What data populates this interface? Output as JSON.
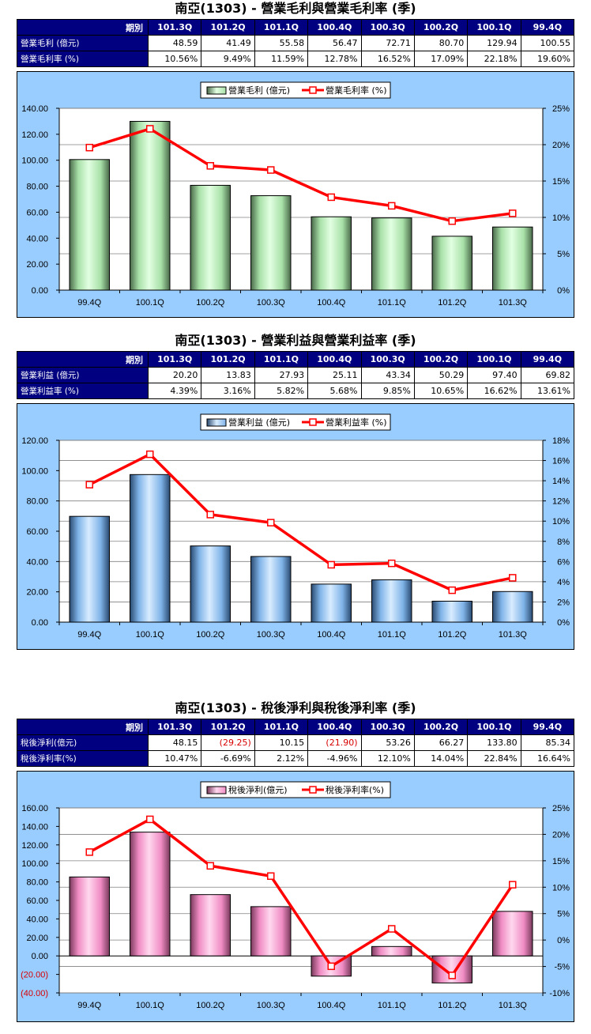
{
  "charts": [
    {
      "title": "南亞(1303) - 營業毛利與營業毛利率 (季)",
      "header_label": "期別",
      "periods": [
        "101.3Q",
        "101.2Q",
        "101.1Q",
        "100.4Q",
        "100.3Q",
        "100.2Q",
        "100.1Q",
        "99.4Q"
      ],
      "rows": [
        {
          "label": "營業毛利 (億元)",
          "values": [
            "48.59",
            "41.49",
            "55.58",
            "56.47",
            "72.71",
            "80.70",
            "129.94",
            "100.55"
          ]
        },
        {
          "label": "營業毛利率 (%)",
          "values": [
            "10.56%",
            "9.49%",
            "11.59%",
            "12.78%",
            "16.52%",
            "17.09%",
            "22.18%",
            "19.60%"
          ]
        }
      ],
      "legend_bar": "營業毛利 (億元)",
      "legend_line": "營業毛利率 (%)",
      "colors": {
        "bar_light": "#e2ffe2",
        "bar_mid": "#a8e0a8",
        "bar_dark": "#4a6a4a",
        "line": "#ff0000",
        "bg": "#99ccff"
      }
    },
    {
      "title": "南亞(1303) - 營業利益與營業利益率 (季)",
      "header_label": "期別",
      "periods": [
        "101.3Q",
        "101.2Q",
        "101.1Q",
        "100.4Q",
        "100.3Q",
        "100.2Q",
        "100.1Q",
        "99.4Q"
      ],
      "rows": [
        {
          "label": "營業利益 (億元)",
          "values": [
            "20.20",
            "13.83",
            "27.93",
            "25.11",
            "43.34",
            "50.29",
            "97.40",
            "69.82"
          ]
        },
        {
          "label": "營業利益率 (%)",
          "values": [
            "4.39%",
            "3.16%",
            "5.82%",
            "5.68%",
            "9.85%",
            "10.65%",
            "16.62%",
            "13.61%"
          ]
        }
      ],
      "legend_bar": "營業利益 (億元)",
      "legend_line": "營業利益率 (%)",
      "colors": {
        "bar_light": "#d8ecff",
        "bar_mid": "#7fb3e8",
        "bar_dark": "#2a4a70",
        "line": "#ff0000",
        "bg": "#99ccff"
      }
    },
    {
      "title": "南亞(1303) - 稅後淨利與稅後淨利率 (季)",
      "header_label": "期別",
      "periods": [
        "101.3Q",
        "101.2Q",
        "101.1Q",
        "100.4Q",
        "100.3Q",
        "100.2Q",
        "100.1Q",
        "99.4Q"
      ],
      "rows": [
        {
          "label": "稅後淨利(億元)",
          "values": [
            "48.15",
            "(29.25)",
            "10.15",
            "(21.90)",
            "53.26",
            "66.27",
            "133.80",
            "85.34"
          ]
        },
        {
          "label": "稅後淨利率(%)",
          "values": [
            "10.47%",
            "-6.69%",
            "2.12%",
            "-4.96%",
            "12.10%",
            "14.04%",
            "22.84%",
            "16.64%"
          ]
        }
      ],
      "legend_bar": "稅後淨利(億元)",
      "legend_line": "稅後淨利率(%)",
      "colors": {
        "bar_light": "#ffd8ee",
        "bar_mid": "#f08cc4",
        "bar_dark": "#7a3a5c",
        "line": "#ff0000",
        "bg": "#99ccff"
      }
    }
  ],
  "chart_data": [
    {
      "type": "bar",
      "title": "南亞(1303) - 營業毛利與營業毛利率 (季)",
      "categories": [
        "99.4Q",
        "100.1Q",
        "100.2Q",
        "100.3Q",
        "100.4Q",
        "101.1Q",
        "101.2Q",
        "101.3Q"
      ],
      "series": [
        {
          "name": "營業毛利 (億元)",
          "type": "bar",
          "axis": "left",
          "values": [
            100.55,
            129.94,
            80.7,
            72.71,
            56.47,
            55.58,
            41.49,
            48.59
          ]
        },
        {
          "name": "營業毛利率 (%)",
          "type": "line",
          "axis": "right",
          "values": [
            19.6,
            22.18,
            17.09,
            16.52,
            12.78,
            11.59,
            9.49,
            10.56
          ]
        }
      ],
      "ylim_left": [
        0,
        140
      ],
      "yticks_left": [
        0,
        20,
        40,
        60,
        80,
        100,
        120,
        140
      ],
      "yticklabels_left": [
        "0.00",
        "20.00",
        "40.00",
        "60.00",
        "80.00",
        "100.00",
        "120.00",
        "140.00"
      ],
      "ylim_right": [
        0,
        25
      ],
      "yticks_right": [
        0,
        5,
        10,
        15,
        20,
        25
      ],
      "yticklabels_right": [
        "0%",
        "5%",
        "10%",
        "15%",
        "20%",
        "25%"
      ],
      "grid": true,
      "legend": "top-center"
    },
    {
      "type": "bar",
      "title": "南亞(1303) - 營業利益與營業利益率 (季)",
      "categories": [
        "99.4Q",
        "100.1Q",
        "100.2Q",
        "100.3Q",
        "100.4Q",
        "101.1Q",
        "101.2Q",
        "101.3Q"
      ],
      "series": [
        {
          "name": "營業利益 (億元)",
          "type": "bar",
          "axis": "left",
          "values": [
            69.82,
            97.4,
            50.29,
            43.34,
            25.11,
            27.93,
            13.83,
            20.2
          ]
        },
        {
          "name": "營業利益率 (%)",
          "type": "line",
          "axis": "right",
          "values": [
            13.61,
            16.62,
            10.65,
            9.85,
            5.68,
            5.82,
            3.16,
            4.39
          ]
        }
      ],
      "ylim_left": [
        0,
        120
      ],
      "yticks_left": [
        0,
        20,
        40,
        60,
        80,
        100,
        120
      ],
      "yticklabels_left": [
        "0.00",
        "20.00",
        "40.00",
        "60.00",
        "80.00",
        "100.00",
        "120.00"
      ],
      "ylim_right": [
        0,
        18
      ],
      "yticks_right": [
        0,
        2,
        4,
        6,
        8,
        10,
        12,
        14,
        16,
        18
      ],
      "yticklabels_right": [
        "0%",
        "2%",
        "4%",
        "6%",
        "8%",
        "10%",
        "12%",
        "14%",
        "16%",
        "18%"
      ],
      "grid": true,
      "legend": "top-center"
    },
    {
      "type": "bar",
      "title": "南亞(1303) - 稅後淨利與稅後淨利率 (季)",
      "categories": [
        "99.4Q",
        "100.1Q",
        "100.2Q",
        "100.3Q",
        "100.4Q",
        "101.1Q",
        "101.2Q",
        "101.3Q"
      ],
      "series": [
        {
          "name": "稅後淨利(億元)",
          "type": "bar",
          "axis": "left",
          "values": [
            85.34,
            133.8,
            66.27,
            53.26,
            -21.9,
            10.15,
            -29.25,
            48.15
          ]
        },
        {
          "name": "稅後淨利率(%)",
          "type": "line",
          "axis": "right",
          "values": [
            16.64,
            22.84,
            14.04,
            12.1,
            -4.96,
            2.12,
            -6.69,
            10.47
          ]
        }
      ],
      "ylim_left": [
        -40,
        160
      ],
      "yticks_left": [
        -40,
        -20,
        0,
        20,
        40,
        60,
        80,
        100,
        120,
        140,
        160
      ],
      "yticklabels_left": [
        "(40.00)",
        "(20.00)",
        "0.00",
        "20.00",
        "40.00",
        "60.00",
        "80.00",
        "100.00",
        "120.00",
        "140.00",
        "160.00"
      ],
      "ylim_right": [
        -10,
        25
      ],
      "yticks_right": [
        -10,
        -5,
        0,
        5,
        10,
        15,
        20,
        25
      ],
      "yticklabels_right": [
        "-10%",
        "-5%",
        "0%",
        "5%",
        "10%",
        "15%",
        "20%",
        "25%"
      ],
      "grid": true,
      "legend": "top-center"
    }
  ]
}
